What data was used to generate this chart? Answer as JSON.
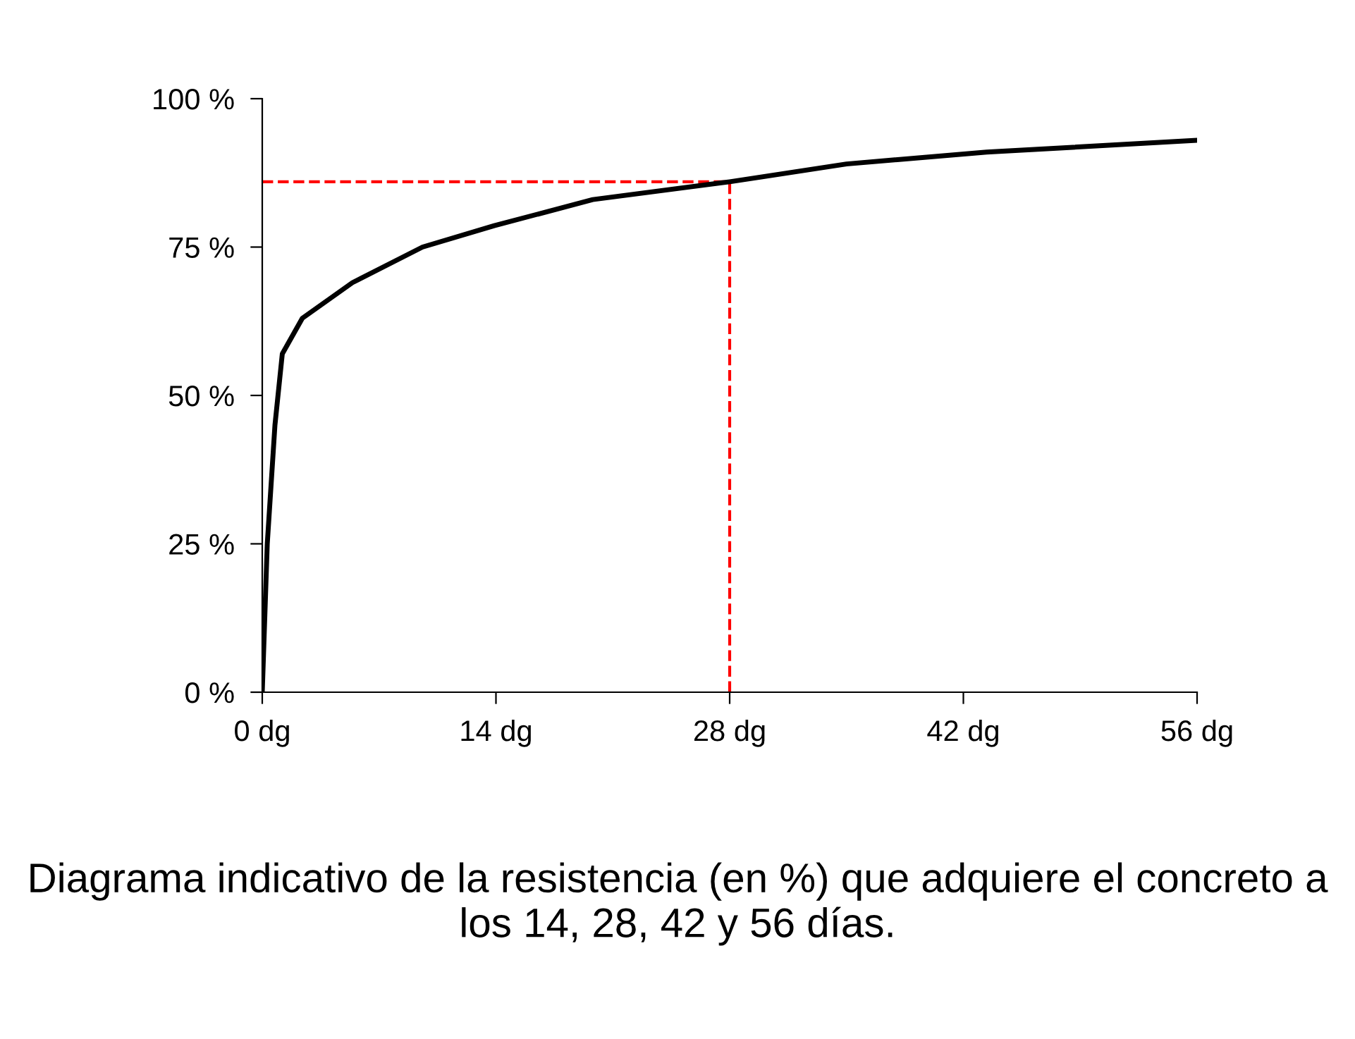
{
  "chart_data": {
    "type": "line",
    "x": [
      0,
      0.3,
      0.76,
      1.2,
      2.4,
      5.4,
      9.6,
      13.9,
      19.8,
      28,
      35,
      43.4,
      56
    ],
    "series": [
      {
        "color": "#000000",
        "values": [
          0,
          25,
          45,
          57,
          63,
          69,
          75,
          78.6,
          83,
          86,
          89,
          91,
          93
        ]
      }
    ],
    "xlim": [
      0,
      56
    ],
    "ylim": [
      0,
      100
    ],
    "xticks": [
      {
        "value": 0,
        "label": "0 dg"
      },
      {
        "value": 14,
        "label": "14 dg"
      },
      {
        "value": 28,
        "label": "28 dg"
      },
      {
        "value": 42,
        "label": "42 dg"
      },
      {
        "value": 56,
        "label": "56 dg"
      }
    ],
    "yticks": [
      {
        "value": 0,
        "label": "0 %"
      },
      {
        "value": 25,
        "label": "25 %"
      },
      {
        "value": 50,
        "label": "50 %"
      },
      {
        "value": 75,
        "label": "75 %"
      },
      {
        "value": 100,
        "label": "100 %"
      }
    ],
    "ref_lines": [
      {
        "axis": "y",
        "value": 86,
        "label": null,
        "color": "#ff0000",
        "line_style": "dashed"
      },
      {
        "axis": "x",
        "value": 28,
        "label": null,
        "color": "#ff0000",
        "line_style": "dashed"
      }
    ],
    "grid": false,
    "legend": false,
    "marker": "none",
    "line_style": "solid",
    "annotations": [
      "Diagrama indicativo de la resistencia (en %) que adquiere el concreto a los 14, 28, 42 y 56 días."
    ]
  }
}
